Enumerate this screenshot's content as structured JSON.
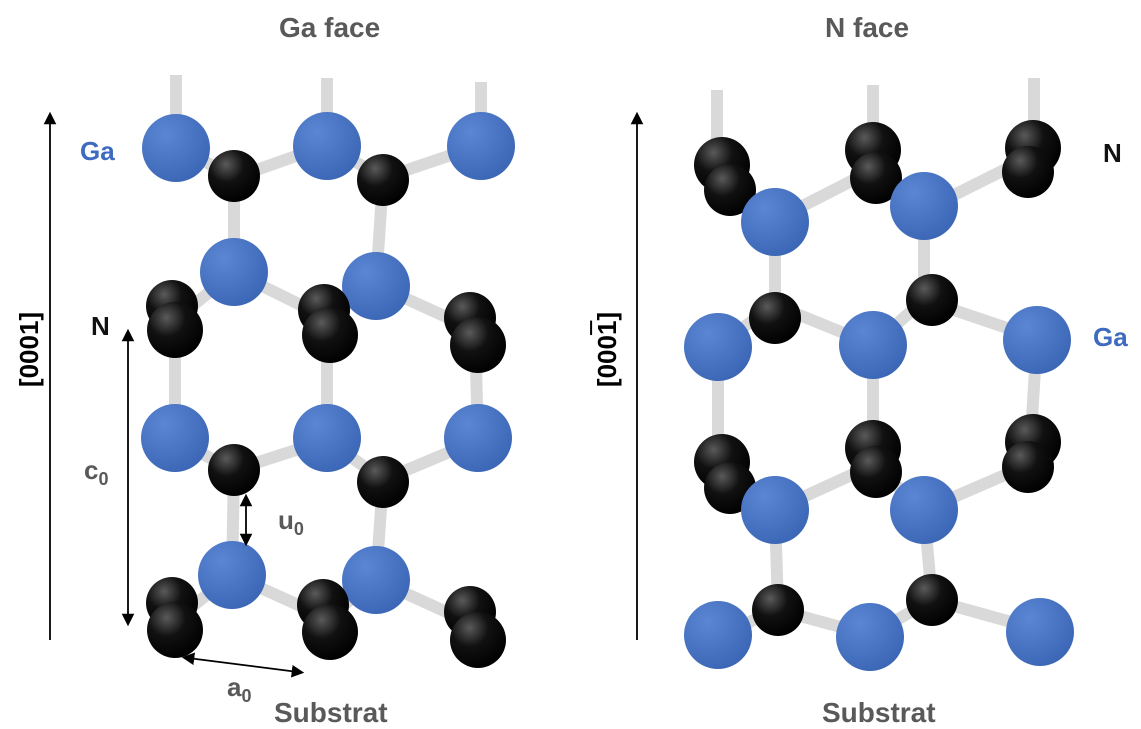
{
  "left": {
    "title": "Ga face",
    "axis_label": "[0001]",
    "top_atom_label": "Ga",
    "second_atom_label": "N",
    "c_label": "c",
    "c_sub": "0",
    "u_label": "u",
    "u_sub": "0",
    "a_label": "a",
    "a_sub": "0",
    "bottom_label": "Substrat"
  },
  "right": {
    "title": "N face",
    "axis_label": "[000",
    "axis_digit": "1",
    "axis_close": "]",
    "top_atom_label": "N",
    "second_atom_label": "Ga",
    "bottom_label": "Substrat"
  },
  "colors": {
    "ga_atom": "#4472c4",
    "n_atom": "#000000",
    "bond": "#d9d9d9",
    "label_gray": "#595959",
    "ga_text": "#3e6bc0"
  }
}
